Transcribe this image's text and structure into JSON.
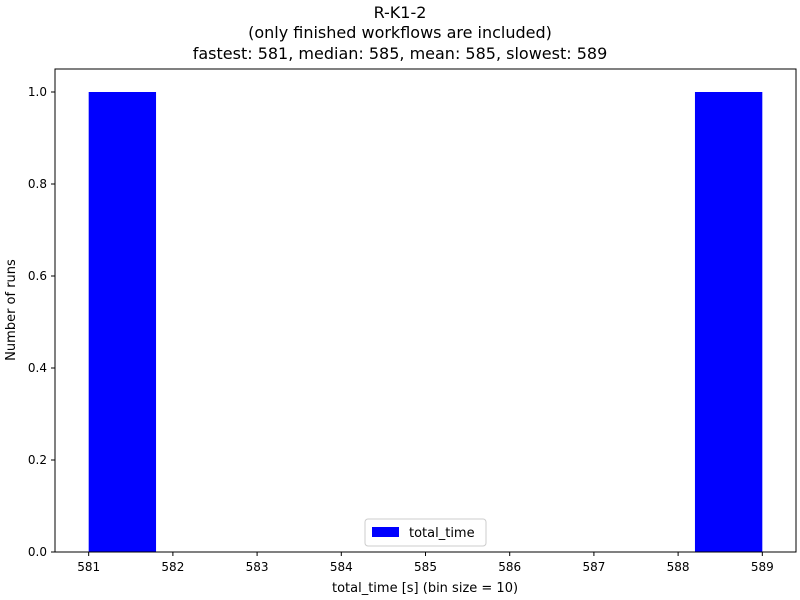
{
  "chart_data": {
    "type": "bar",
    "title": "R-K1-2",
    "subtitle": "(only finished workflows are included)",
    "stats_line": "fastest: 581, median: 585, mean: 585, slowest: 589",
    "xlabel": "total_time [s] (bin size = 10)",
    "ylabel": "Number of runs",
    "xlim": [
      580.6,
      589.4
    ],
    "ylim": [
      0,
      1.05
    ],
    "xticks": [
      581,
      582,
      583,
      584,
      585,
      586,
      587,
      588,
      589
    ],
    "yticks": [
      "0.0",
      "0.2",
      "0.4",
      "0.6",
      "0.8",
      "1.0"
    ],
    "bars": [
      {
        "x0": 581.0,
        "x1": 581.8,
        "value": 1
      },
      {
        "x0": 588.2,
        "x1": 589.0,
        "value": 1
      }
    ],
    "series_name": "total_time",
    "bar_color": "#0000ff",
    "legend_position": "lower center"
  }
}
